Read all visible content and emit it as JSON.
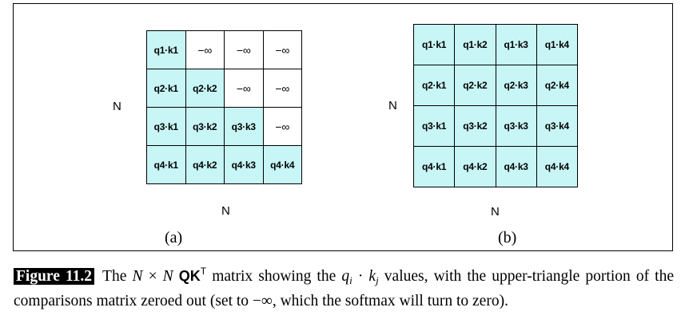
{
  "panel_a": {
    "rows": [
      [
        "q1·k1",
        "−∞",
        "−∞",
        "−∞"
      ],
      [
        "q2·k1",
        "q2·k2",
        "−∞",
        "−∞"
      ],
      [
        "q3·k1",
        "q3·k2",
        "q3·k3",
        "−∞"
      ],
      [
        "q4·k1",
        "q4·k2",
        "q4·k3",
        "q4·k4"
      ]
    ],
    "row_label": "N",
    "col_label": "N",
    "sublabel": "(a)"
  },
  "panel_b": {
    "rows": [
      [
        "q1·k1",
        "q1·k2",
        "q1·k3",
        "q1·k4"
      ],
      [
        "q2·k1",
        "q2·k2",
        "q2·k3",
        "q2·k4"
      ],
      [
        "q3·k1",
        "q3·k2",
        "q3·k3",
        "q3·k4"
      ],
      [
        "q4·k1",
        "q4·k2",
        "q4·k3",
        "q4·k4"
      ]
    ],
    "row_label": "N",
    "col_label": "N",
    "sublabel": "(b)"
  },
  "colors": {
    "cell_fill": "#c8f5f5",
    "masked_fill": "#ffffff"
  },
  "caption": {
    "figure_number": "Figure 11.2",
    "t1": "The ",
    "n1": "N",
    "t2": " × ",
    "n2": "N",
    "t3": " ",
    "qk": "QK",
    "sup": "T",
    "t4": " matrix showing the ",
    "qi": "q",
    "i": "i",
    "dot": " · ",
    "kj": "k",
    "j": "j",
    "t5": " values, with the upper-triangle portion of the comparisons matrix zeroed out (set to −∞, which the softmax will turn to zero)."
  }
}
